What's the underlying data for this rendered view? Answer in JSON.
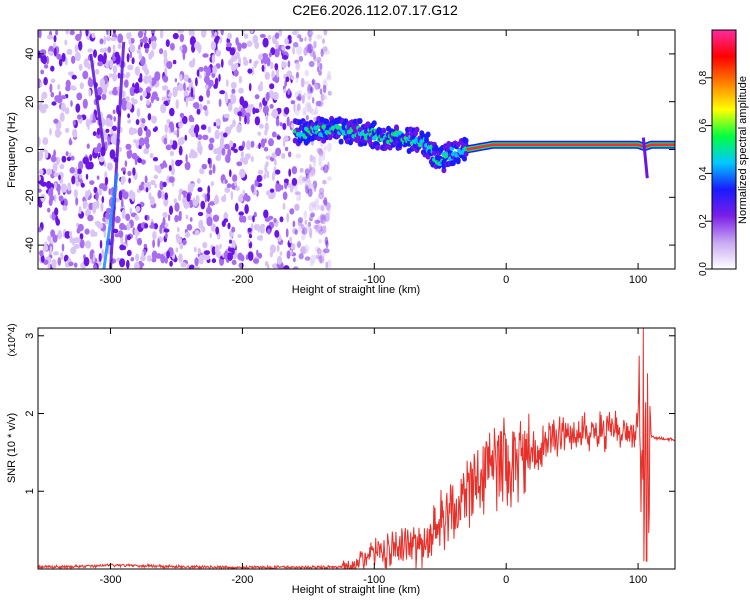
{
  "figure_title": "C2E6.2026.112.07.17.G12",
  "chart_data": [
    {
      "type": "heatmap",
      "title": "C2E6.2026.112.07.17.G12",
      "xlabel": "Height of straight line (km)",
      "ylabel": "Frequency (Hz)",
      "xlim": [
        -355,
        128
      ],
      "ylim": [
        -50,
        50
      ],
      "xticks": [
        -300,
        -200,
        -100,
        0,
        100
      ],
      "yticks": [
        -40,
        -20,
        0,
        20,
        40
      ],
      "colorbar": {
        "label": "Normalized spectral amplitude",
        "range": [
          0.0,
          1.0
        ],
        "ticks": [
          0.0,
          0.2,
          0.4,
          0.6,
          0.8
        ],
        "colors": [
          "#ffffff",
          "#c9a8f2",
          "#7a1fe8",
          "#1a1aff",
          "#00c8ff",
          "#00ff40",
          "#ffff00",
          "#ff8000",
          "#ff0000",
          "#ff2aa0"
        ]
      },
      "ridge": {
        "x": [
          -160,
          -145,
          -130,
          -120,
          -110,
          -100,
          -90,
          -80,
          -70,
          -60,
          -55,
          -50,
          -45,
          -40,
          -30,
          -20,
          -10,
          0,
          10,
          20,
          40,
          60,
          80,
          100,
          105,
          110,
          128
        ],
        "freq": [
          7,
          8,
          8,
          7.5,
          7,
          6,
          5,
          5,
          4,
          2,
          -2,
          -5,
          -3,
          -1,
          0,
          1,
          2,
          2,
          2,
          2,
          2,
          2,
          2,
          2,
          1,
          2,
          2
        ]
      },
      "noise_region_x": [
        -355,
        -145
      ]
    },
    {
      "type": "line",
      "title": "",
      "xlabel": "Height of straight line (km)",
      "ylabel": "SNR (10 * v/v)",
      "y_multiplier": "(x10^4)",
      "xlim": [
        -355,
        128
      ],
      "ylim": [
        0,
        3.1
      ],
      "xticks": [
        -300,
        -200,
        -100,
        0,
        100
      ],
      "yticks": [
        1,
        2,
        3
      ],
      "color": "#e8302a",
      "x": [
        -355,
        -320,
        -300,
        -250,
        -200,
        -150,
        -120,
        -110,
        -100,
        -80,
        -60,
        -50,
        -40,
        -30,
        -20,
        -10,
        0,
        10,
        20,
        30,
        40,
        60,
        70,
        75,
        80,
        90,
        100,
        105,
        108,
        110,
        115,
        128
      ],
      "y": [
        0.03,
        0.03,
        0.05,
        0.03,
        0.02,
        0.02,
        0.03,
        0.12,
        0.2,
        0.28,
        0.35,
        0.6,
        0.8,
        0.9,
        1.2,
        1.35,
        1.38,
        1.42,
        1.5,
        1.6,
        1.72,
        1.75,
        1.78,
        1.72,
        1.82,
        1.78,
        1.8,
        1.75,
        1.7,
        1.7,
        1.68,
        1.66
      ]
    }
  ]
}
